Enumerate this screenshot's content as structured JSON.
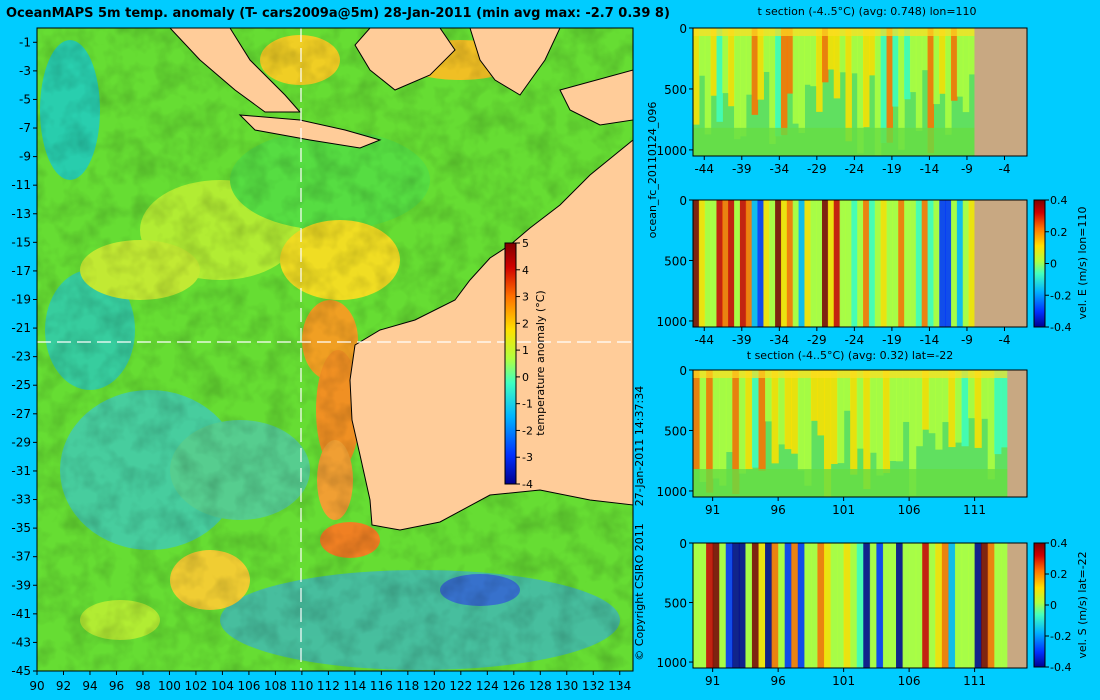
{
  "title": "OceanMAPS 5m temp. anomaly (T- cars2009a@5m) 28-Jan-2011 (min avg max: -2.7 0.39 8)",
  "side_labels": {
    "forecast_id": "ocean_fc_20110124_096",
    "timestamp": "27-Jan-2011 14:37:34",
    "copyright": "© Copyright CSIRO 2011"
  },
  "colors": {
    "background": "#00ccff",
    "land": "#ffcc99",
    "section_land": "#c8a882",
    "colormap": [
      "#00008f",
      "#0030ff",
      "#00b4ff",
      "#40ffc0",
      "#b0ff40",
      "#ffe000",
      "#ff7000",
      "#d00000",
      "#800000"
    ]
  },
  "chart_data": [
    {
      "id": "map",
      "type": "heatmap",
      "title": "OceanMAPS 5m temp. anomaly (T- cars2009a@5m) 28-Jan-2011 (min avg max: -2.7 0.39 8)",
      "xlim": [
        90,
        135
      ],
      "ylim": [
        -45,
        0
      ],
      "x_ticks": [
        90,
        92,
        94,
        96,
        98,
        100,
        102,
        104,
        106,
        108,
        110,
        112,
        114,
        116,
        118,
        120,
        122,
        124,
        126,
        128,
        130,
        132,
        134
      ],
      "y_ticks": [
        -1,
        -3,
        -5,
        -7,
        -9,
        -11,
        -13,
        -15,
        -17,
        -19,
        -21,
        -23,
        -25,
        -27,
        -29,
        -31,
        -33,
        -35,
        -37,
        -39,
        -41,
        -43,
        -45
      ],
      "section_lines": {
        "lon": 110,
        "lat": -22
      },
      "colorbar": {
        "label": "temperature anomaly (°C)",
        "range": [
          -4,
          5
        ],
        "ticks": [
          -4,
          -3,
          -2,
          -1,
          0,
          1,
          2,
          3,
          4,
          5
        ]
      },
      "stats": {
        "min": -2.7,
        "avg": 0.39,
        "max": 8
      }
    },
    {
      "id": "t_section_lon",
      "type": "heatmap",
      "title": "t section (-4..5°C) (avg: 0.748) lon=110",
      "x_ticks": [
        -44,
        -39,
        -34,
        -29,
        -24,
        -19,
        -14,
        -9,
        -4
      ],
      "y_ticks": [
        0,
        500,
        1000
      ],
      "xlim": [
        -45.5,
        -1
      ],
      "ylim": [
        1050,
        0
      ],
      "land_from": -8
    },
    {
      "id": "vel_e_section_lon",
      "type": "heatmap",
      "title": "",
      "x_ticks": [
        -44,
        -39,
        -34,
        -29,
        -24,
        -19,
        -14,
        -9,
        -4
      ],
      "y_ticks": [
        0,
        500,
        1000
      ],
      "xlim": [
        -45.5,
        -1
      ],
      "ylim": [
        1050,
        0
      ],
      "land_from": -8,
      "colorbar": {
        "label": "vel. E (m/s) lon=110",
        "range": [
          -0.4,
          0.4
        ],
        "ticks": [
          -0.4,
          -0.2,
          0,
          0.2,
          0.4
        ]
      }
    },
    {
      "id": "t_section_lat",
      "type": "heatmap",
      "title": "t section (-4..5°C) (avg: 0.32) lat=-22",
      "x_ticks": [
        91,
        96,
        101,
        106,
        111
      ],
      "y_ticks": [
        0,
        500,
        1000
      ],
      "xlim": [
        89.5,
        115
      ],
      "ylim": [
        1050,
        0
      ],
      "land_from": 113.5
    },
    {
      "id": "vel_s_section_lat",
      "type": "heatmap",
      "title": "",
      "x_ticks": [
        91,
        96,
        101,
        106,
        111
      ],
      "y_ticks": [
        0,
        500,
        1000
      ],
      "xlim": [
        89.5,
        115
      ],
      "ylim": [
        1050,
        0
      ],
      "land_from": 113.5,
      "colorbar": {
        "label": "vel. S (m/s) lat=-22",
        "range": [
          -0.4,
          0.4
        ],
        "ticks": [
          -0.4,
          -0.2,
          0,
          0.2,
          0.4
        ]
      }
    }
  ]
}
